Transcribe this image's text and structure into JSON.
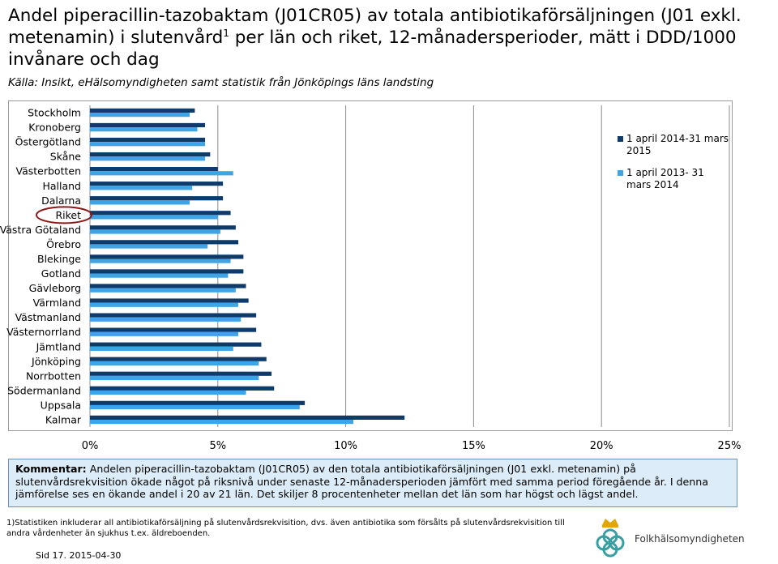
{
  "title_main": "Andel piperacillin-tazobaktam (J01CR05) av totala antibiotikaförsäljningen (J01 exkl. metenamin) i slutenvård",
  "title_sup": "1",
  "title_rest": " per län och riket, 12-månadersperioder, mätt i DDD/1000 invånare och dag",
  "source": "Källa: Insikt, eHälsomyndigheten samt statistik från Jönköpings läns landsting",
  "chart_data": {
    "type": "bar",
    "orientation": "horizontal",
    "categories": [
      "Stockholm",
      "Kronoberg",
      "Östergötland",
      "Skåne",
      "Västerbotten",
      "Halland",
      "Dalarna",
      "Riket",
      "Västra Götaland",
      "Örebro",
      "Blekinge",
      "Gotland",
      "Gävleborg",
      "Värmland",
      "Västmanland",
      "Västernorrland",
      "Jämtland",
      "Jönköping",
      "Norrbotten",
      "Södermanland",
      "Uppsala",
      "Kalmar"
    ],
    "highlighted_category": "Riket",
    "series": [
      {
        "name": "1 april 2014-31 mars 2015",
        "color": "#0f3b6b",
        "values": [
          4.1,
          4.5,
          4.5,
          4.7,
          5.0,
          5.2,
          5.2,
          5.5,
          5.7,
          5.8,
          6.0,
          6.0,
          6.1,
          6.2,
          6.5,
          6.5,
          6.7,
          6.9,
          7.1,
          7.2,
          8.4,
          12.3
        ]
      },
      {
        "name": "1 april 2013- 31 mars 2014",
        "color": "#3fa4e6",
        "values": [
          3.9,
          4.2,
          4.5,
          4.5,
          5.6,
          4.0,
          3.9,
          5.0,
          5.1,
          4.6,
          5.5,
          5.4,
          5.7,
          5.8,
          5.9,
          5.8,
          5.6,
          6.6,
          6.6,
          6.1,
          8.2,
          10.3
        ]
      }
    ],
    "xlim": [
      0,
      25
    ],
    "xticks": [
      "0%",
      "5%",
      "10%",
      "15%",
      "20%",
      "25%"
    ],
    "xtick_values": [
      0,
      5,
      10,
      15,
      20,
      25
    ],
    "grid": true,
    "legend_position": "right"
  },
  "comment": {
    "label": "Kommentar:",
    "text": " Andelen piperacillin-tazobaktam (J01CR05) av den totala antibiotikaförsäljningen (J01 exkl. metenamin) på slutenvårdsrekvisition ökade något på riksnivå under senaste 12-månadersperioden jämfört med samma period föregående år.  I denna jämförelse ses en ökande andel i 20 av 21 län. Det skiljer 8 procentenheter mellan det län som har högst och lägst andel."
  },
  "footnote": "1)Statistiken inkluderar all antibiotikaförsäljning på slutenvårdsrekvisition, dvs. även antibiotika som försålts på slutenvårdsrekvisition till andra vårdenheter än sjukhus t.ex. äldreboenden.",
  "page_label": "Sid 17. 2015-04-30",
  "logo_text": "Folkhälsomyndigheten"
}
